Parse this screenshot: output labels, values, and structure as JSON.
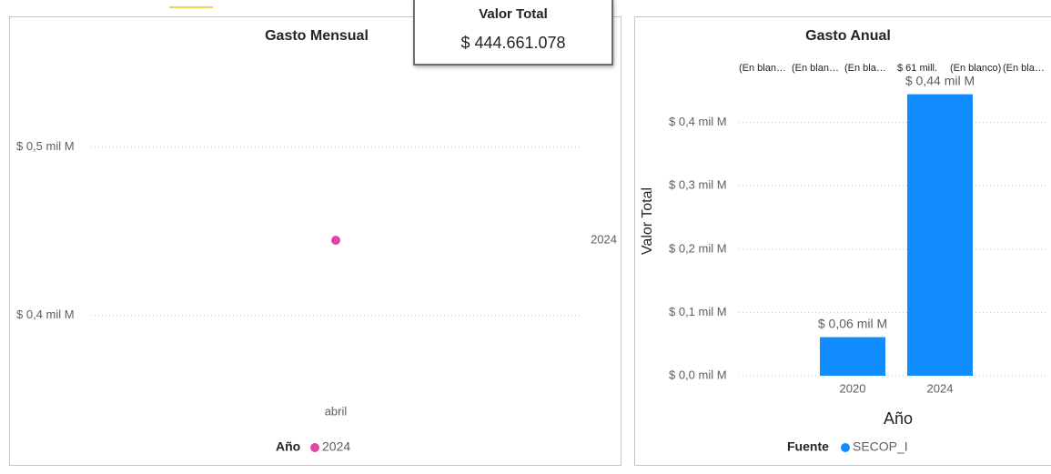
{
  "card": {
    "title": "Valor Total",
    "value": "$ 444.661.078"
  },
  "chart_data": [
    {
      "type": "line",
      "title": "Gasto Mensual",
      "categories": [
        "abril"
      ],
      "series": [
        {
          "name": "2024",
          "color": "#e044a7",
          "values": [
            444661078
          ]
        }
      ],
      "legend_title": "Año",
      "legend": "bottom",
      "grid": true,
      "ylim": [
        355000000,
        555000000
      ],
      "yticks": [
        {
          "value": 400000000,
          "label": "$ 0,4 mil M"
        },
        {
          "value": 500000000,
          "label": "$ 0,5 mil M"
        }
      ]
    },
    {
      "type": "bar",
      "title": "Gasto Anual",
      "categories": [
        "2020",
        "2024"
      ],
      "series": [
        {
          "name": "SECOP_I",
          "color": "#118dff",
          "values": [
            61000000,
            444661078
          ],
          "value_labels": [
            "$ 0,06 mil M",
            "$ 0,44 mil M"
          ]
        }
      ],
      "legend_title": "Fuente",
      "legend": "bottom",
      "grid": true,
      "x_label": "Año",
      "y_label": "Valor Total",
      "top_labels": [
        "(En blan…",
        "(En blan…",
        "(En bla…",
        "$ 61 mill.",
        "(En blanco)",
        "(En bla…"
      ],
      "ylim": [
        0,
        480000000
      ],
      "yticks": [
        {
          "value": 0,
          "label": "$ 0,0 mil M"
        },
        {
          "value": 100000000,
          "label": "$ 0,1 mil M"
        },
        {
          "value": 200000000,
          "label": "$ 0,2 mil M"
        },
        {
          "value": 300000000,
          "label": "$ 0,3 mil M"
        },
        {
          "value": 400000000,
          "label": "$ 0,4 mil M"
        }
      ]
    }
  ]
}
